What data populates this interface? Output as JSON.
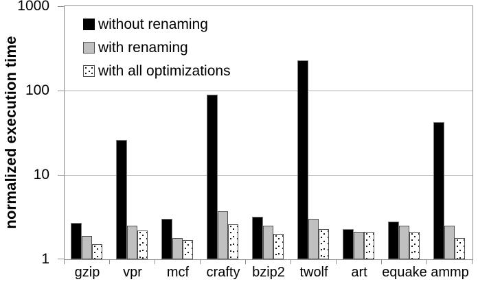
{
  "chart_data": {
    "type": "bar",
    "title": "",
    "xlabel": "",
    "ylabel": "normalized execution time",
    "y_scale": "log10",
    "ylim": [
      1,
      1000
    ],
    "ytick_labels": [
      "1",
      "10",
      "100",
      "1000"
    ],
    "ytick_values": [
      1,
      10,
      100,
      1000
    ],
    "grid": "horizontal decade gridlines",
    "legend_position": "inside top-left",
    "categories": [
      "gzip",
      "vpr",
      "mcf",
      "crafty",
      "bzip2",
      "twolf",
      "art",
      "equake",
      "ammp"
    ],
    "series": [
      {
        "name": "without renaming",
        "style": "solid-black",
        "color": "#000000",
        "values": [
          2.7,
          26,
          3.0,
          90,
          3.2,
          230,
          2.3,
          2.8,
          42
        ]
      },
      {
        "name": "with renaming",
        "style": "solid-gray",
        "color": "#c0c0c0",
        "values": [
          1.9,
          2.5,
          1.8,
          3.7,
          2.5,
          3.0,
          2.1,
          2.5,
          2.5
        ]
      },
      {
        "name": "with all optimizations",
        "style": "white-dotted",
        "color": "#ffffff",
        "values": [
          1.5,
          2.2,
          1.7,
          2.6,
          2.0,
          2.3,
          2.1,
          2.1,
          1.8
        ]
      }
    ]
  },
  "colors": {
    "background": "#ffffff",
    "axis": "#8c8c8c",
    "gridline": "#ababab",
    "text": "#000000"
  }
}
